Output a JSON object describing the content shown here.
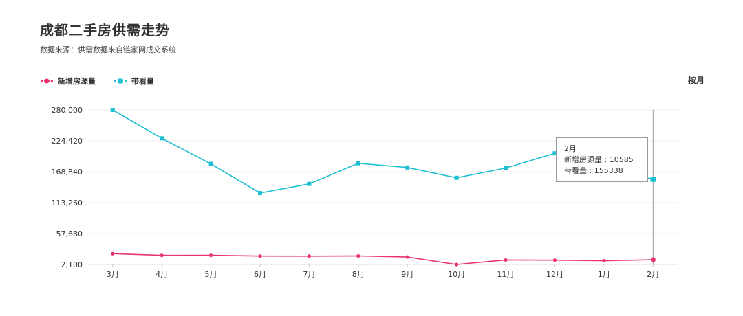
{
  "title": "成都二手房供需走势",
  "subtitle": "数据来源：供需数据来自链家网成交系统",
  "toggle_label": "按月",
  "colors": {
    "series_a": "#e8336d",
    "series_b": "#1fbfd3"
  },
  "tooltip": {
    "month": "2月",
    "line1": "新增房源量 : 10585",
    "line2": "带看量 : 155338"
  },
  "chart_data": {
    "type": "line",
    "title": "成都二手房供需走势",
    "categories": [
      "3月",
      "4月",
      "5月",
      "6月",
      "7月",
      "8月",
      "9月",
      "10月",
      "11月",
      "12月",
      "1月",
      "2月"
    ],
    "y_ticks": [
      "2,100",
      "57,680",
      "113,260",
      "168,840",
      "224,420",
      "280,000"
    ],
    "ylim": [
      2100,
      280000
    ],
    "grid": true,
    "legend_position": "top-left",
    "series": [
      {
        "name": "新增房源量",
        "marker": "circle",
        "color": "#e8336d",
        "values": [
          21600,
          18500,
          18600,
          17300,
          17200,
          17500,
          15600,
          2100,
          10200,
          9900,
          8800,
          10585
        ]
      },
      {
        "name": "带看量",
        "marker": "square",
        "color": "#1fbfd3",
        "values": [
          280000,
          229000,
          183000,
          130500,
          147000,
          184000,
          176500,
          158000,
          175500,
          202000,
          176000,
          155338
        ]
      }
    ]
  }
}
